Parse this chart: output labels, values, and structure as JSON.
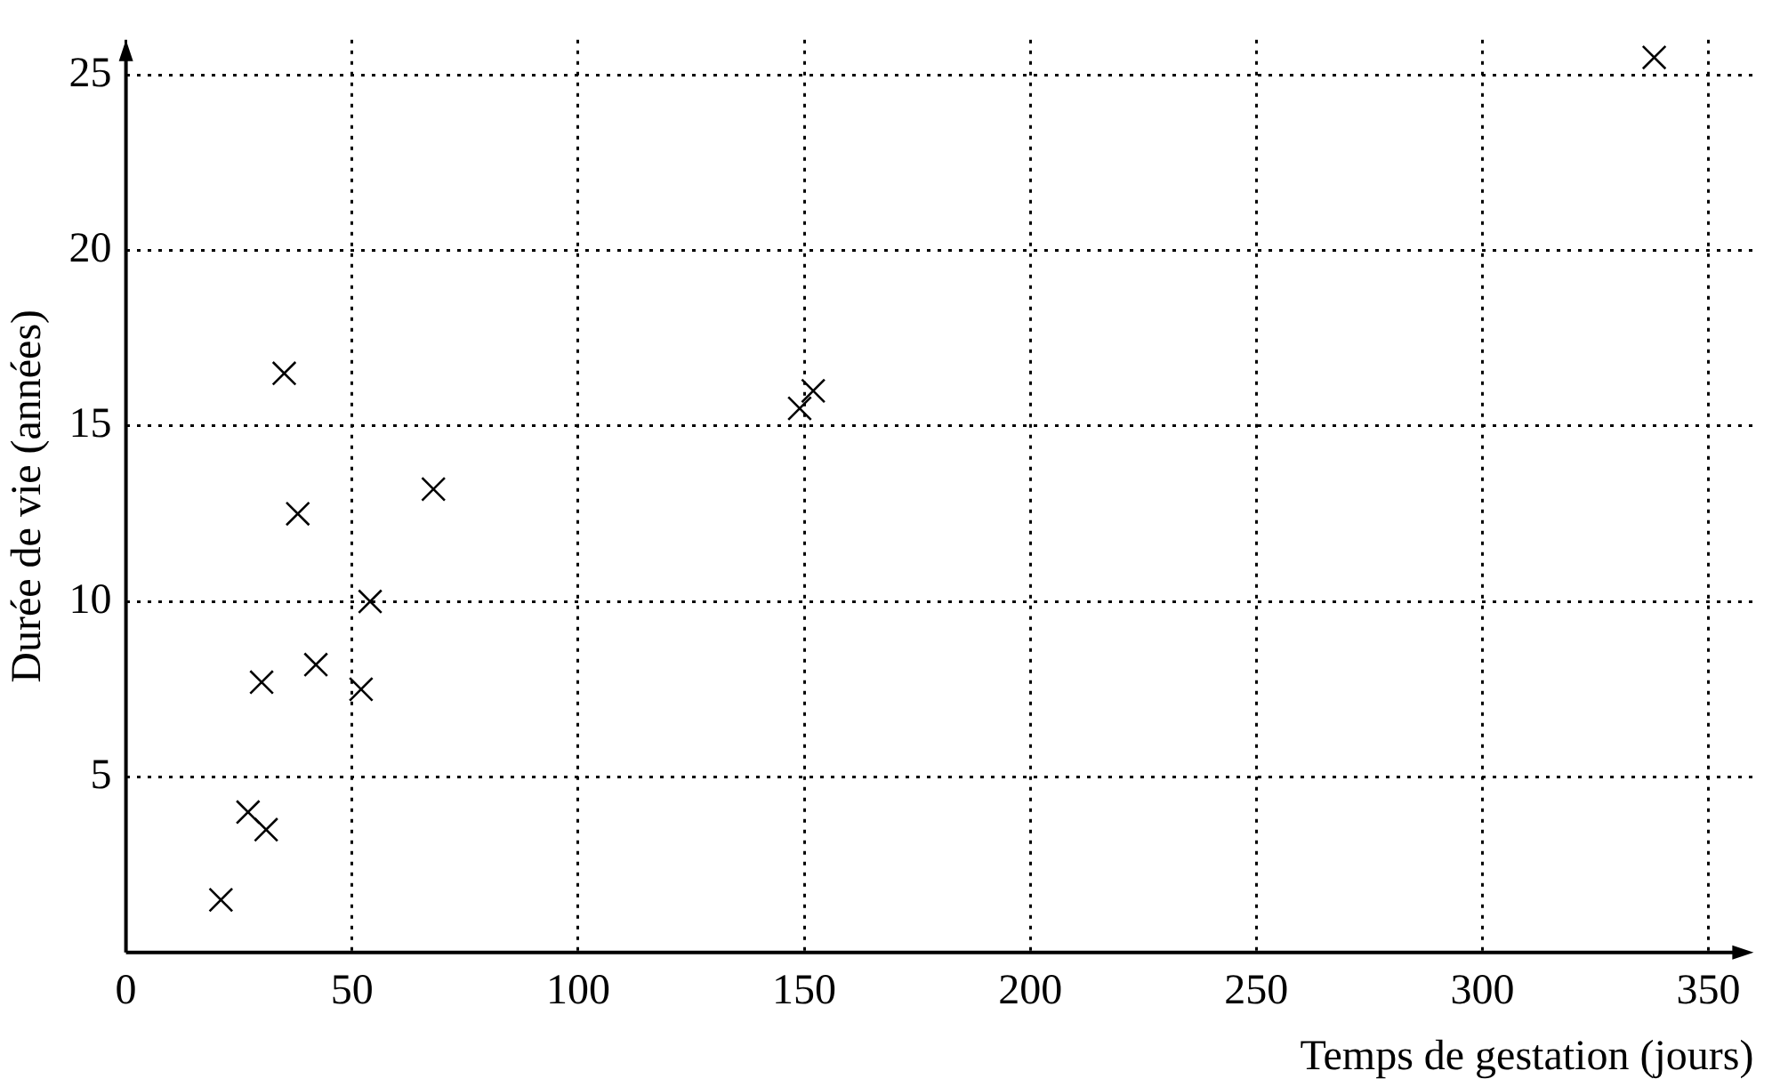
{
  "chart_data": {
    "type": "scatter",
    "xlabel": "Temps de gestation (jours)",
    "ylabel": "Durée de vie (années)",
    "x": [
      21,
      27,
      31,
      30,
      52,
      42,
      54,
      38,
      35,
      68,
      149,
      152,
      338
    ],
    "values": [
      1.5,
      4,
      3.5,
      7.7,
      7.5,
      8.2,
      10,
      12.5,
      16.5,
      13.2,
      15.5,
      16,
      25.5
    ],
    "color": "#000000",
    "marker": "cross",
    "xlim": [
      0,
      360
    ],
    "ylim": [
      0,
      26
    ],
    "xticks": [
      0,
      50,
      100,
      150,
      200,
      250,
      300,
      350
    ],
    "yticks": [
      5,
      10,
      15,
      20,
      25
    ],
    "grid": true
  }
}
